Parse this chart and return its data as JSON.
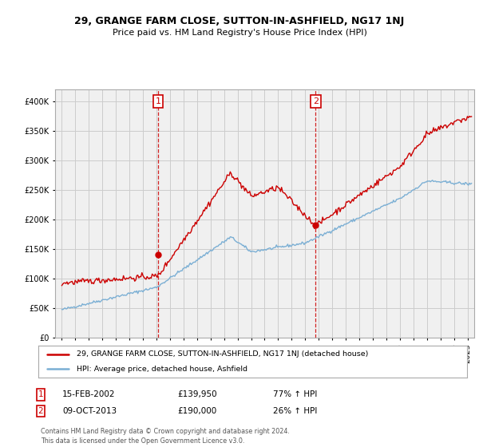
{
  "title1": "29, GRANGE FARM CLOSE, SUTTON-IN-ASHFIELD, NG17 1NJ",
  "title2": "Price paid vs. HM Land Registry's House Price Index (HPI)",
  "legend_line1": "29, GRANGE FARM CLOSE, SUTTON-IN-ASHFIELD, NG17 1NJ (detached house)",
  "legend_line2": "HPI: Average price, detached house, Ashfield",
  "annotation1_date": "15-FEB-2002",
  "annotation1_price": "£139,950",
  "annotation1_hpi": "77% ↑ HPI",
  "annotation2_date": "09-OCT-2013",
  "annotation2_price": "£190,000",
  "annotation2_hpi": "26% ↑ HPI",
  "footer": "Contains HM Land Registry data © Crown copyright and database right 2024.\nThis data is licensed under the Open Government Licence v3.0.",
  "red_color": "#cc0000",
  "blue_color": "#7bafd4",
  "vline_color": "#cc0000",
  "grid_color": "#cccccc",
  "bg_color": "#ffffff",
  "plot_bg_color": "#f0f0f0",
  "ylim": [
    0,
    420000
  ],
  "yticks": [
    0,
    50000,
    100000,
    150000,
    200000,
    250000,
    300000,
    350000,
    400000
  ],
  "sale1_x": 2002.12,
  "sale1_y": 139950,
  "sale2_x": 2013.77,
  "sale2_y": 190000,
  "xmin": 1994.5,
  "xmax": 2025.5
}
